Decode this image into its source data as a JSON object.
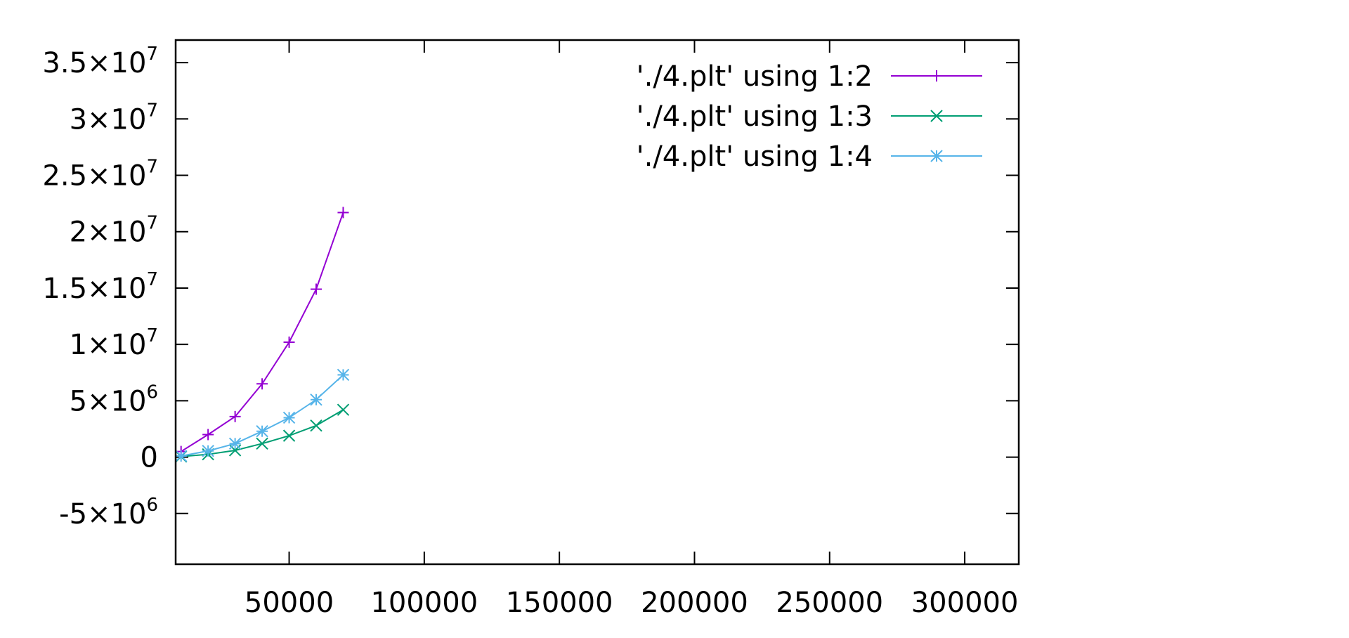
{
  "chart_data": {
    "type": "line",
    "title": "",
    "xlabel": "",
    "ylabel": "",
    "xlim": [
      8000,
      320000
    ],
    "ylim": [
      -9500000,
      37000000
    ],
    "grid": false,
    "legend_position": "top-right",
    "x_ticks": [
      {
        "value": 50000,
        "label": "50000"
      },
      {
        "value": 100000,
        "label": "100000"
      },
      {
        "value": 150000,
        "label": "150000"
      },
      {
        "value": 200000,
        "label": "200000"
      },
      {
        "value": 250000,
        "label": "250000"
      },
      {
        "value": 300000,
        "label": "300000"
      }
    ],
    "y_ticks": [
      {
        "value": 35000000,
        "mantissa": "3.5×10",
        "exp": "7"
      },
      {
        "value": 30000000,
        "mantissa": "3×10",
        "exp": "7"
      },
      {
        "value": 25000000,
        "mantissa": "2.5×10",
        "exp": "7"
      },
      {
        "value": 20000000,
        "mantissa": "2×10",
        "exp": "7"
      },
      {
        "value": 15000000,
        "mantissa": "1.5×10",
        "exp": "7"
      },
      {
        "value": 10000000,
        "mantissa": "1×10",
        "exp": "7"
      },
      {
        "value": 5000000,
        "mantissa": "5×10",
        "exp": "6"
      },
      {
        "value": 0,
        "mantissa": "0",
        "exp": ""
      },
      {
        "value": -5000000,
        "mantissa": "-5×10",
        "exp": "6"
      }
    ],
    "x": [
      10000,
      20000,
      30000,
      40000,
      50000,
      60000,
      70000
    ],
    "series": [
      {
        "name": "'./4.plt' using 1:2",
        "color": "#9400d3",
        "marker": "plus",
        "values": [
          500000,
          2000000,
          3600000,
          6500000,
          10200000,
          14900000,
          21700000
        ]
      },
      {
        "name": "'./4.plt' using 1:3",
        "color": "#009e73",
        "marker": "cross",
        "values": [
          50000,
          250000,
          600000,
          1200000,
          1900000,
          2800000,
          4200000
        ]
      },
      {
        "name": "'./4.plt' using 1:4",
        "color": "#56b4e9",
        "marker": "asterisk",
        "values": [
          100000,
          550000,
          1200000,
          2300000,
          3500000,
          5100000,
          7300000
        ]
      }
    ]
  }
}
